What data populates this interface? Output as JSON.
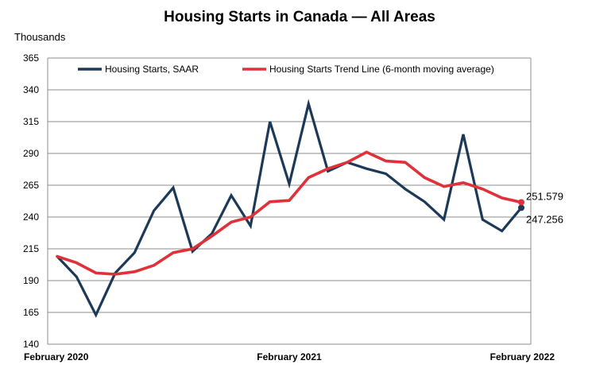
{
  "chart_data": {
    "type": "line",
    "title": "Housing Starts in Canada — All Areas",
    "ylabel": "Thousands",
    "xlabel": "",
    "ylim": [
      140,
      365
    ],
    "yticks": [
      140,
      165,
      190,
      215,
      240,
      265,
      290,
      315,
      340,
      365
    ],
    "grid": true,
    "legend_position": "top",
    "x_tick_labels": [
      "February 2020",
      "February 2021",
      "February 2022"
    ],
    "x": [
      "Feb 2020",
      "Mar 2020",
      "Apr 2020",
      "May 2020",
      "Jun 2020",
      "Jul 2020",
      "Aug 2020",
      "Sep 2020",
      "Oct 2020",
      "Nov 2020",
      "Dec 2020",
      "Jan 2021",
      "Feb 2021",
      "Mar 2021",
      "Apr 2021",
      "May 2021",
      "Jun 2021",
      "Jul 2021",
      "Aug 2021",
      "Sep 2021",
      "Oct 2021",
      "Nov 2021",
      "Dec 2021",
      "Jan 2022",
      "Feb 2022"
    ],
    "series": [
      {
        "name": "Housing Starts, SAAR",
        "color": "#1c3a57",
        "values": [
          209,
          193,
          163,
          196,
          212,
          245,
          263,
          213,
          227,
          257,
          233,
          315,
          266,
          329,
          276,
          283,
          278,
          274,
          262,
          252,
          238,
          305,
          238,
          229,
          247.256
        ]
      },
      {
        "name": "Housing Starts Trend Line (6-month moving average)",
        "color": "#e0303a",
        "values": [
          209,
          204,
          196,
          195,
          197,
          202,
          212,
          215,
          225,
          236,
          240,
          252,
          253,
          271,
          278,
          283,
          291,
          284,
          283,
          271,
          264,
          267,
          262,
          255,
          251.579
        ]
      }
    ],
    "end_labels": [
      "251.579",
      "247.256"
    ]
  }
}
